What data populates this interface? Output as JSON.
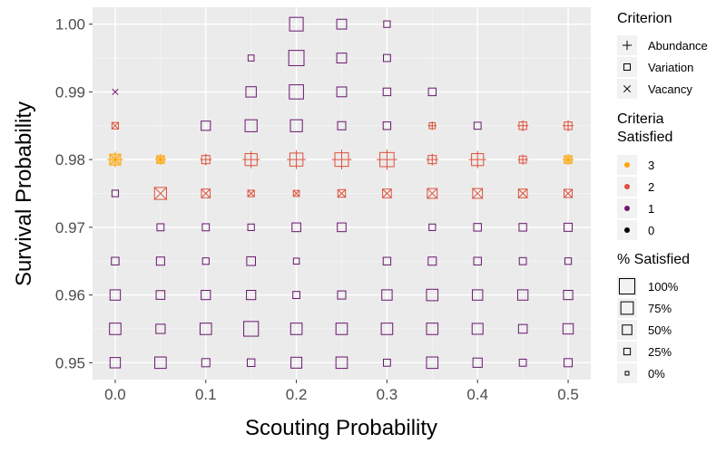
{
  "chart_data": {
    "type": "scatter",
    "xlabel": "Scouting Probability",
    "ylabel": "Survival Probability",
    "xlim": [
      -0.025,
      0.525
    ],
    "ylim": [
      0.9475,
      1.0025
    ],
    "x_ticks": [
      "0.0",
      "0.1",
      "0.2",
      "0.3",
      "0.4",
      "0.5"
    ],
    "y_ticks": [
      "0.95",
      "0.96",
      "0.97",
      "0.98",
      "0.99",
      "1.00"
    ],
    "grid": true,
    "legends": {
      "criterion": {
        "title": "Criterion",
        "items": [
          {
            "label": "Abundance",
            "shape": "plus"
          },
          {
            "label": "Variation",
            "shape": "square"
          },
          {
            "label": "Vacancy",
            "shape": "cross"
          }
        ]
      },
      "satisfied": {
        "title_lines": [
          "Criteria",
          "Satisfied"
        ],
        "items": [
          {
            "label": "3",
            "color": "#FCA50A"
          },
          {
            "label": "2",
            "color": "#DD513A"
          },
          {
            "label": "1",
            "color": "#6A176E"
          },
          {
            "label": "0",
            "color": "#000004"
          }
        ]
      },
      "percent": {
        "title": "% Satisfied",
        "items": [
          {
            "label": "100%",
            "size": 100
          },
          {
            "label": "75%",
            "size": 75
          },
          {
            "label": "50%",
            "size": 50
          },
          {
            "label": "25%",
            "size": 25
          },
          {
            "label": "0%",
            "size": 0
          }
        ]
      }
    },
    "colors": {
      "3": "#FCA50A",
      "2": "#DD513A",
      "1": "#6A176E",
      "0": "#000004"
    },
    "points": [
      {
        "x": 0.0,
        "y": 0.99,
        "shapes": [
          "cross"
        ],
        "satisfied": 1,
        "pct": 0
      },
      {
        "x": 0.0,
        "y": 0.985,
        "shapes": [
          "square",
          "cross"
        ],
        "satisfied": 2,
        "pct": 10
      },
      {
        "x": 0.0,
        "y": 0.98,
        "shapes": [
          "square",
          "plus",
          "cross"
        ],
        "satisfied": 3,
        "pct": 50
      },
      {
        "x": 0.0,
        "y": 0.975,
        "shapes": [
          "square"
        ],
        "satisfied": 1,
        "pct": 10
      },
      {
        "x": 0.0,
        "y": 0.965,
        "shapes": [
          "square"
        ],
        "satisfied": 1,
        "pct": 20
      },
      {
        "x": 0.0,
        "y": 0.96,
        "shapes": [
          "square"
        ],
        "satisfied": 1,
        "pct": 45
      },
      {
        "x": 0.0,
        "y": 0.955,
        "shapes": [
          "square"
        ],
        "satisfied": 1,
        "pct": 55
      },
      {
        "x": 0.0,
        "y": 0.95,
        "shapes": [
          "square"
        ],
        "satisfied": 1,
        "pct": 45
      },
      {
        "x": 0.05,
        "y": 0.98,
        "shapes": [
          "square",
          "plus",
          "cross"
        ],
        "satisfied": 3,
        "pct": 20
      },
      {
        "x": 0.05,
        "y": 0.975,
        "shapes": [
          "square",
          "cross"
        ],
        "satisfied": 2,
        "pct": 60
      },
      {
        "x": 0.05,
        "y": 0.97,
        "shapes": [
          "square"
        ],
        "satisfied": 1,
        "pct": 15
      },
      {
        "x": 0.05,
        "y": 0.965,
        "shapes": [
          "square"
        ],
        "satisfied": 1,
        "pct": 25
      },
      {
        "x": 0.05,
        "y": 0.96,
        "shapes": [
          "square"
        ],
        "satisfied": 1,
        "pct": 30
      },
      {
        "x": 0.05,
        "y": 0.955,
        "shapes": [
          "square"
        ],
        "satisfied": 1,
        "pct": 35
      },
      {
        "x": 0.05,
        "y": 0.95,
        "shapes": [
          "square"
        ],
        "satisfied": 1,
        "pct": 55
      },
      {
        "x": 0.1,
        "y": 0.985,
        "shapes": [
          "square"
        ],
        "satisfied": 1,
        "pct": 35
      },
      {
        "x": 0.1,
        "y": 0.98,
        "shapes": [
          "square",
          "plus"
        ],
        "satisfied": 2,
        "pct": 25
      },
      {
        "x": 0.1,
        "y": 0.975,
        "shapes": [
          "square",
          "cross"
        ],
        "satisfied": 2,
        "pct": 30
      },
      {
        "x": 0.1,
        "y": 0.97,
        "shapes": [
          "square"
        ],
        "satisfied": 1,
        "pct": 15
      },
      {
        "x": 0.1,
        "y": 0.965,
        "shapes": [
          "square"
        ],
        "satisfied": 1,
        "pct": 10
      },
      {
        "x": 0.1,
        "y": 0.96,
        "shapes": [
          "square"
        ],
        "satisfied": 1,
        "pct": 35
      },
      {
        "x": 0.1,
        "y": 0.955,
        "shapes": [
          "square"
        ],
        "satisfied": 1,
        "pct": 55
      },
      {
        "x": 0.1,
        "y": 0.95,
        "shapes": [
          "square"
        ],
        "satisfied": 1,
        "pct": 25
      },
      {
        "x": 0.15,
        "y": 0.995,
        "shapes": [
          "square"
        ],
        "satisfied": 1,
        "pct": 5
      },
      {
        "x": 0.15,
        "y": 0.99,
        "shapes": [
          "square"
        ],
        "satisfied": 1,
        "pct": 45
      },
      {
        "x": 0.15,
        "y": 0.985,
        "shapes": [
          "square"
        ],
        "satisfied": 1,
        "pct": 60
      },
      {
        "x": 0.15,
        "y": 0.98,
        "shapes": [
          "square",
          "plus"
        ],
        "satisfied": 2,
        "pct": 60
      },
      {
        "x": 0.15,
        "y": 0.975,
        "shapes": [
          "square",
          "cross"
        ],
        "satisfied": 2,
        "pct": 10
      },
      {
        "x": 0.15,
        "y": 0.97,
        "shapes": [
          "square"
        ],
        "satisfied": 1,
        "pct": 10
      },
      {
        "x": 0.15,
        "y": 0.965,
        "shapes": [
          "square"
        ],
        "satisfied": 1,
        "pct": 30
      },
      {
        "x": 0.15,
        "y": 0.96,
        "shapes": [
          "square"
        ],
        "satisfied": 1,
        "pct": 35
      },
      {
        "x": 0.15,
        "y": 0.955,
        "shapes": [
          "square"
        ],
        "satisfied": 1,
        "pct": 85
      },
      {
        "x": 0.15,
        "y": 0.95,
        "shapes": [
          "square"
        ],
        "satisfied": 1,
        "pct": 20
      },
      {
        "x": 0.2,
        "y": 1.0,
        "shapes": [
          "square"
        ],
        "satisfied": 1,
        "pct": 75
      },
      {
        "x": 0.2,
        "y": 0.995,
        "shapes": [
          "square"
        ],
        "satisfied": 1,
        "pct": 90
      },
      {
        "x": 0.2,
        "y": 0.99,
        "shapes": [
          "square"
        ],
        "satisfied": 1,
        "pct": 80
      },
      {
        "x": 0.2,
        "y": 0.985,
        "shapes": [
          "square"
        ],
        "satisfied": 1,
        "pct": 60
      },
      {
        "x": 0.2,
        "y": 0.98,
        "shapes": [
          "square",
          "plus"
        ],
        "satisfied": 2,
        "pct": 70
      },
      {
        "x": 0.2,
        "y": 0.975,
        "shapes": [
          "square",
          "cross"
        ],
        "satisfied": 2,
        "pct": 5
      },
      {
        "x": 0.2,
        "y": 0.97,
        "shapes": [
          "square"
        ],
        "satisfied": 1,
        "pct": 30
      },
      {
        "x": 0.2,
        "y": 0.965,
        "shapes": [
          "square"
        ],
        "satisfied": 1,
        "pct": 5
      },
      {
        "x": 0.2,
        "y": 0.96,
        "shapes": [
          "square"
        ],
        "satisfied": 1,
        "pct": 15
      },
      {
        "x": 0.2,
        "y": 0.955,
        "shapes": [
          "square"
        ],
        "satisfied": 1,
        "pct": 55
      },
      {
        "x": 0.2,
        "y": 0.95,
        "shapes": [
          "square"
        ],
        "satisfied": 1,
        "pct": 50
      },
      {
        "x": 0.25,
        "y": 1.0,
        "shapes": [
          "square"
        ],
        "satisfied": 1,
        "pct": 40
      },
      {
        "x": 0.25,
        "y": 0.995,
        "shapes": [
          "square"
        ],
        "satisfied": 1,
        "pct": 40
      },
      {
        "x": 0.25,
        "y": 0.99,
        "shapes": [
          "square"
        ],
        "satisfied": 1,
        "pct": 40
      },
      {
        "x": 0.25,
        "y": 0.985,
        "shapes": [
          "square"
        ],
        "satisfied": 1,
        "pct": 25
      },
      {
        "x": 0.25,
        "y": 0.98,
        "shapes": [
          "square",
          "plus"
        ],
        "satisfied": 2,
        "pct": 75
      },
      {
        "x": 0.25,
        "y": 0.975,
        "shapes": [
          "square",
          "cross"
        ],
        "satisfied": 2,
        "pct": 20
      },
      {
        "x": 0.25,
        "y": 0.97,
        "shapes": [
          "square"
        ],
        "satisfied": 1,
        "pct": 30
      },
      {
        "x": 0.25,
        "y": 0.96,
        "shapes": [
          "square"
        ],
        "satisfied": 1,
        "pct": 25
      },
      {
        "x": 0.25,
        "y": 0.955,
        "shapes": [
          "square"
        ],
        "satisfied": 1,
        "pct": 55
      },
      {
        "x": 0.25,
        "y": 0.95,
        "shapes": [
          "square"
        ],
        "satisfied": 1,
        "pct": 55
      },
      {
        "x": 0.3,
        "y": 1.0,
        "shapes": [
          "square"
        ],
        "satisfied": 1,
        "pct": 10
      },
      {
        "x": 0.3,
        "y": 0.995,
        "shapes": [
          "square"
        ],
        "satisfied": 1,
        "pct": 15
      },
      {
        "x": 0.3,
        "y": 0.99,
        "shapes": [
          "square"
        ],
        "satisfied": 1,
        "pct": 20
      },
      {
        "x": 0.3,
        "y": 0.985,
        "shapes": [
          "square"
        ],
        "satisfied": 1,
        "pct": 20
      },
      {
        "x": 0.3,
        "y": 0.98,
        "shapes": [
          "square",
          "plus"
        ],
        "satisfied": 2,
        "pct": 80
      },
      {
        "x": 0.3,
        "y": 0.975,
        "shapes": [
          "square",
          "cross"
        ],
        "satisfied": 2,
        "pct": 30
      },
      {
        "x": 0.3,
        "y": 0.965,
        "shapes": [
          "square"
        ],
        "satisfied": 1,
        "pct": 20
      },
      {
        "x": 0.3,
        "y": 0.96,
        "shapes": [
          "square"
        ],
        "satisfied": 1,
        "pct": 45
      },
      {
        "x": 0.3,
        "y": 0.955,
        "shapes": [
          "square"
        ],
        "satisfied": 1,
        "pct": 55
      },
      {
        "x": 0.3,
        "y": 0.95,
        "shapes": [
          "square"
        ],
        "satisfied": 1,
        "pct": 15
      },
      {
        "x": 0.35,
        "y": 0.99,
        "shapes": [
          "square"
        ],
        "satisfied": 1,
        "pct": 20
      },
      {
        "x": 0.35,
        "y": 0.985,
        "shapes": [
          "square",
          "plus"
        ],
        "satisfied": 2,
        "pct": 5
      },
      {
        "x": 0.35,
        "y": 0.98,
        "shapes": [
          "square",
          "plus"
        ],
        "satisfied": 2,
        "pct": 25
      },
      {
        "x": 0.35,
        "y": 0.975,
        "shapes": [
          "square",
          "cross"
        ],
        "satisfied": 2,
        "pct": 40
      },
      {
        "x": 0.35,
        "y": 0.97,
        "shapes": [
          "square"
        ],
        "satisfied": 1,
        "pct": 10
      },
      {
        "x": 0.35,
        "y": 0.965,
        "shapes": [
          "square"
        ],
        "satisfied": 1,
        "pct": 25
      },
      {
        "x": 0.35,
        "y": 0.96,
        "shapes": [
          "square"
        ],
        "satisfied": 1,
        "pct": 55
      },
      {
        "x": 0.35,
        "y": 0.955,
        "shapes": [
          "square"
        ],
        "satisfied": 1,
        "pct": 55
      },
      {
        "x": 0.35,
        "y": 0.95,
        "shapes": [
          "square"
        ],
        "satisfied": 1,
        "pct": 55
      },
      {
        "x": 0.4,
        "y": 0.985,
        "shapes": [
          "square"
        ],
        "satisfied": 1,
        "pct": 15
      },
      {
        "x": 0.4,
        "y": 0.98,
        "shapes": [
          "square",
          "plus"
        ],
        "satisfied": 2,
        "pct": 60
      },
      {
        "x": 0.4,
        "y": 0.975,
        "shapes": [
          "square",
          "cross"
        ],
        "satisfied": 2,
        "pct": 40
      },
      {
        "x": 0.4,
        "y": 0.97,
        "shapes": [
          "square"
        ],
        "satisfied": 1,
        "pct": 20
      },
      {
        "x": 0.4,
        "y": 0.965,
        "shapes": [
          "square"
        ],
        "satisfied": 1,
        "pct": 20
      },
      {
        "x": 0.4,
        "y": 0.96,
        "shapes": [
          "square"
        ],
        "satisfied": 1,
        "pct": 45
      },
      {
        "x": 0.4,
        "y": 0.955,
        "shapes": [
          "square"
        ],
        "satisfied": 1,
        "pct": 50
      },
      {
        "x": 0.4,
        "y": 0.95,
        "shapes": [
          "square"
        ],
        "satisfied": 1,
        "pct": 35
      },
      {
        "x": 0.45,
        "y": 0.985,
        "shapes": [
          "square",
          "plus"
        ],
        "satisfied": 2,
        "pct": 20
      },
      {
        "x": 0.45,
        "y": 0.98,
        "shapes": [
          "square",
          "plus"
        ],
        "satisfied": 2,
        "pct": 15
      },
      {
        "x": 0.45,
        "y": 0.975,
        "shapes": [
          "square",
          "cross"
        ],
        "satisfied": 2,
        "pct": 30
      },
      {
        "x": 0.45,
        "y": 0.97,
        "shapes": [
          "square"
        ],
        "satisfied": 1,
        "pct": 20
      },
      {
        "x": 0.45,
        "y": 0.965,
        "shapes": [
          "square"
        ],
        "satisfied": 1,
        "pct": 15
      },
      {
        "x": 0.45,
        "y": 0.96,
        "shapes": [
          "square"
        ],
        "satisfied": 1,
        "pct": 45
      },
      {
        "x": 0.45,
        "y": 0.955,
        "shapes": [
          "square"
        ],
        "satisfied": 1,
        "pct": 30
      },
      {
        "x": 0.45,
        "y": 0.95,
        "shapes": [
          "square"
        ],
        "satisfied": 1,
        "pct": 15
      },
      {
        "x": 0.5,
        "y": 0.985,
        "shapes": [
          "square",
          "plus"
        ],
        "satisfied": 2,
        "pct": 20
      },
      {
        "x": 0.5,
        "y": 0.98,
        "shapes": [
          "square",
          "plus",
          "cross"
        ],
        "satisfied": 3,
        "pct": 20
      },
      {
        "x": 0.5,
        "y": 0.975,
        "shapes": [
          "square",
          "cross"
        ],
        "satisfied": 2,
        "pct": 25
      },
      {
        "x": 0.5,
        "y": 0.97,
        "shapes": [
          "square"
        ],
        "satisfied": 1,
        "pct": 25
      },
      {
        "x": 0.5,
        "y": 0.965,
        "shapes": [
          "square"
        ],
        "satisfied": 1,
        "pct": 10
      },
      {
        "x": 0.5,
        "y": 0.96,
        "shapes": [
          "square"
        ],
        "satisfied": 1,
        "pct": 35
      },
      {
        "x": 0.5,
        "y": 0.955,
        "shapes": [
          "square"
        ],
        "satisfied": 1,
        "pct": 45
      },
      {
        "x": 0.5,
        "y": 0.95,
        "shapes": [
          "square"
        ],
        "satisfied": 1,
        "pct": 25
      }
    ]
  }
}
